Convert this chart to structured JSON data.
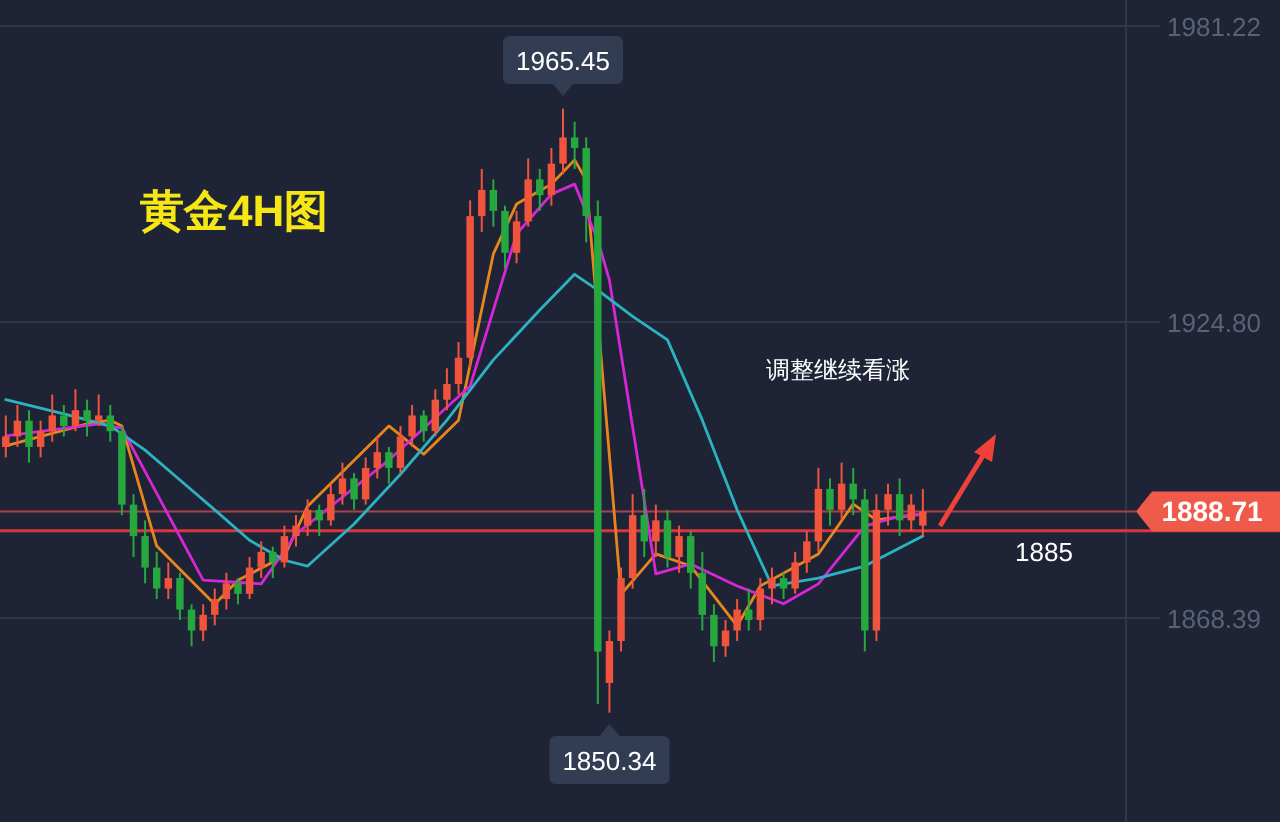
{
  "chart_data": {
    "type": "candlestick",
    "title": "黄金4H图",
    "categories": [
      null,
      null,
      null,
      null,
      null,
      null,
      null,
      null,
      null,
      null,
      null,
      null,
      null,
      null,
      null,
      null,
      null,
      null,
      null,
      null,
      null,
      null,
      null,
      null,
      null,
      null,
      null,
      null,
      null,
      null,
      null,
      null,
      null,
      null,
      null,
      null,
      null,
      null,
      null,
      null,
      null,
      null,
      null,
      null,
      null,
      null,
      null,
      null,
      null,
      null,
      null,
      null,
      null,
      null,
      null,
      null,
      null,
      null,
      null,
      null,
      null,
      null,
      null,
      null,
      null,
      null,
      null,
      null,
      null,
      null,
      null,
      null,
      null,
      null,
      null,
      null,
      null,
      null,
      null,
      null,
      null,
      null,
      null,
      null,
      null,
      null,
      null,
      null,
      null,
      null,
      null,
      null,
      null,
      null,
      null,
      null,
      null
    ],
    "ohlc": [
      [
        1901,
        1907,
        1899,
        1903
      ],
      [
        1903,
        1909,
        1901,
        1906
      ],
      [
        1906,
        1908,
        1898,
        1901
      ],
      [
        1901,
        1906,
        1899,
        1904
      ],
      [
        1904,
        1911,
        1902,
        1907
      ],
      [
        1907,
        1909,
        1903,
        1905
      ],
      [
        1905,
        1912,
        1904,
        1908
      ],
      [
        1908,
        1910,
        1903,
        1906
      ],
      [
        1906,
        1911,
        1905,
        1907
      ],
      [
        1907,
        1909,
        1902,
        1904
      ],
      [
        1904,
        1905,
        1888,
        1890
      ],
      [
        1890,
        1892,
        1880,
        1884
      ],
      [
        1884,
        1887,
        1875,
        1878
      ],
      [
        1878,
        1881,
        1872,
        1874
      ],
      [
        1874,
        1879,
        1872,
        1876
      ],
      [
        1876,
        1877,
        1868,
        1870
      ],
      [
        1870,
        1871,
        1863,
        1866
      ],
      [
        1866,
        1871,
        1864,
        1869
      ],
      [
        1869,
        1874,
        1867,
        1872
      ],
      [
        1872,
        1877,
        1870,
        1875
      ],
      [
        1875,
        1876,
        1871,
        1873
      ],
      [
        1873,
        1880,
        1872,
        1878
      ],
      [
        1878,
        1883,
        1876,
        1881
      ],
      [
        1881,
        1882,
        1876,
        1879
      ],
      [
        1879,
        1886,
        1878,
        1884
      ],
      [
        1884,
        1888,
        1882,
        1886
      ],
      [
        1886,
        1891,
        1884,
        1889
      ],
      [
        1889,
        1890,
        1884,
        1887
      ],
      [
        1887,
        1894,
        1886,
        1892
      ],
      [
        1892,
        1898,
        1890,
        1895
      ],
      [
        1895,
        1896,
        1889,
        1891
      ],
      [
        1891,
        1899,
        1890,
        1897
      ],
      [
        1897,
        1903,
        1895,
        1900
      ],
      [
        1900,
        1901,
        1894,
        1897
      ],
      [
        1897,
        1905,
        1896,
        1903
      ],
      [
        1903,
        1909,
        1901,
        1907
      ],
      [
        1907,
        1908,
        1902,
        1904
      ],
      [
        1904,
        1912,
        1903,
        1910
      ],
      [
        1910,
        1916,
        1908,
        1913
      ],
      [
        1913,
        1921,
        1911,
        1918
      ],
      [
        1918,
        1948,
        1916,
        1945
      ],
      [
        1945,
        1954,
        1942,
        1950
      ],
      [
        1950,
        1952,
        1943,
        1946
      ],
      [
        1946,
        1947,
        1935,
        1938
      ],
      [
        1938,
        1946,
        1936,
        1944
      ],
      [
        1944,
        1956,
        1943,
        1952
      ],
      [
        1952,
        1954,
        1946,
        1949
      ],
      [
        1949,
        1958,
        1947,
        1955
      ],
      [
        1955,
        1965.45,
        1953,
        1960
      ],
      [
        1960,
        1963,
        1954,
        1958
      ],
      [
        1958,
        1960,
        1940,
        1945
      ],
      [
        1945,
        1948,
        1852,
        1862
      ],
      [
        1856,
        1866,
        1850.34,
        1864
      ],
      [
        1864,
        1878,
        1862,
        1876
      ],
      [
        1876,
        1892,
        1874,
        1888
      ],
      [
        1888,
        1893,
        1880,
        1883
      ],
      [
        1883,
        1890,
        1880,
        1887
      ],
      [
        1887,
        1889,
        1878,
        1880
      ],
      [
        1880,
        1886,
        1877,
        1884
      ],
      [
        1884,
        1885,
        1874,
        1877
      ],
      [
        1877,
        1881,
        1866,
        1869
      ],
      [
        1869,
        1871,
        1860,
        1863
      ],
      [
        1863,
        1868,
        1861,
        1866
      ],
      [
        1866,
        1872,
        1864,
        1870
      ],
      [
        1870,
        1874,
        1866,
        1868
      ],
      [
        1868,
        1876,
        1866,
        1874
      ],
      [
        1874,
        1878,
        1871,
        1876
      ],
      [
        1876,
        1877,
        1872,
        1874
      ],
      [
        1874,
        1881,
        1873,
        1879
      ],
      [
        1879,
        1885,
        1877,
        1883
      ],
      [
        1883,
        1897,
        1881,
        1893
      ],
      [
        1893,
        1895,
        1886,
        1889
      ],
      [
        1889,
        1898,
        1887,
        1894
      ],
      [
        1894,
        1897,
        1888,
        1891
      ],
      [
        1891,
        1893,
        1862,
        1866
      ],
      [
        1866,
        1892,
        1864,
        1889
      ],
      [
        1889,
        1894,
        1886,
        1892
      ],
      [
        1892,
        1895,
        1884,
        1887
      ],
      [
        1887,
        1892,
        1885,
        1890
      ],
      [
        1886,
        1893,
        1884,
        1888.71
      ],
      null,
      null,
      null,
      null,
      null,
      null,
      null,
      null,
      null,
      null,
      null,
      null,
      null,
      null,
      null,
      null,
      null
    ],
    "colors": [
      "#f0543c",
      "#f0543c",
      "#27a83e",
      "#f0543c",
      "#f0543c",
      "#27a83e",
      "#f0543c",
      "#27a83e",
      "#f0543c",
      "#27a83e",
      "#27a83e",
      "#27a83e",
      "#27a83e",
      "#27a83e",
      "#f0543c",
      "#27a83e",
      "#27a83e",
      "#f0543c",
      "#f0543c",
      "#f0543c",
      "#27a83e",
      "#f0543c",
      "#f0543c",
      "#27a83e",
      "#f0543c",
      "#f0543c",
      "#f0543c",
      "#27a83e",
      "#f0543c",
      "#f0543c",
      "#27a83e",
      "#f0543c",
      "#f0543c",
      "#27a83e",
      "#f0543c",
      "#f0543c",
      "#27a83e",
      "#f0543c",
      "#f0543c",
      "#f0543c",
      "#f0543c",
      "#f0543c",
      "#27a83e",
      "#27a83e",
      "#f0543c",
      "#f0543c",
      "#27a83e",
      "#f0543c",
      "#f0543c",
      "#27a83e",
      "#27a83e",
      "#27a83e",
      "#f0543c",
      "#f0543c",
      "#f0543c",
      "#27a83e",
      "#f0543c",
      "#27a83e",
      "#f0543c",
      "#27a83e",
      "#27a83e",
      "#27a83e",
      "#f0543c",
      "#f0543c",
      "#27a83e",
      "#f0543c",
      "#f0543c",
      "#27a83e",
      "#f0543c",
      "#f0543c",
      "#f0543c",
      "#27a83e",
      "#f0543c",
      "#27a83e",
      "#27a83e",
      "#f0543c",
      "#f0543c",
      "#27a83e",
      "#f0543c",
      "#f0543c",
      null,
      null,
      null,
      null,
      null,
      null,
      null,
      null,
      null,
      null,
      null,
      null,
      null,
      null,
      null,
      null,
      null
    ],
    "series": [
      {
        "type": "line",
        "color": "#e8861e",
        "values": [
          1901.2,
          null,
          null,
          null,
          null,
          null,
          null,
          1905.4,
          null,
          1906.1,
          1905,
          null,
          null,
          1882.1,
          null,
          null,
          null,
          null,
          1871,
          null,
          1875.6,
          null,
          null,
          null,
          1880.2,
          null,
          1889.7,
          null,
          null,
          null,
          null,
          null,
          null,
          1905,
          null,
          null,
          1899.6,
          null,
          null,
          1906.1,
          null,
          null,
          1937.8,
          null,
          1947.3,
          null,
          null,
          1951.1,
          null,
          1955.7,
          1951.9,
          null,
          null,
          1872.9,
          null,
          null,
          1880.6,
          null,
          null,
          1878.3,
          null,
          null,
          null,
          1866.9,
          null,
          1874.5,
          null,
          null,
          null,
          null,
          1880.6,
          null,
          null,
          1890.1,
          null,
          1887.1,
          null,
          null,
          null,
          1888.2,
          null,
          null,
          null,
          null,
          null,
          null,
          null,
          null,
          null,
          null,
          null,
          null,
          null,
          null,
          null,
          null,
          null
        ]
      },
      {
        "type": "line",
        "color": "#d626d6",
        "values": [
          1903.1,
          null,
          null,
          null,
          null,
          null,
          null,
          null,
          1905.4,
          null,
          1904.6,
          null,
          null,
          null,
          null,
          null,
          null,
          1875.6,
          null,
          null,
          null,
          null,
          1874.9,
          null,
          null,
          1884.4,
          null,
          null,
          null,
          null,
          null,
          null,
          null,
          1898.5,
          null,
          null,
          null,
          null,
          null,
          null,
          1912.6,
          null,
          null,
          null,
          1941.6,
          null,
          null,
          1949.2,
          null,
          1951.1,
          null,
          1940.4,
          1932.8,
          null,
          null,
          null,
          1876.8,
          null,
          null,
          1878.7,
          null,
          null,
          null,
          1874.5,
          null,
          null,
          null,
          1871.1,
          null,
          null,
          1874.9,
          null,
          null,
          null,
          1885.9,
          null,
          null,
          1887.8,
          null,
          1888.2,
          null,
          null,
          null,
          null,
          null,
          null,
          null,
          null,
          null,
          null,
          null,
          null,
          null,
          null,
          null,
          null,
          null
        ]
      },
      {
        "type": "line",
        "color": "#2bb3c0",
        "values": [
          1910,
          null,
          null,
          null,
          null,
          1907.3,
          null,
          null,
          null,
          1905,
          null,
          null,
          1900.4,
          null,
          null,
          1894.7,
          null,
          null,
          1889,
          null,
          null,
          1883.2,
          null,
          null,
          1879.4,
          null,
          1878.3,
          null,
          null,
          null,
          1886.3,
          null,
          null,
          null,
          1895.8,
          null,
          null,
          null,
          1906.1,
          null,
          null,
          null,
          1917.6,
          null,
          null,
          null,
          1927.1,
          null,
          null,
          1933.9,
          null,
          1930.9,
          null,
          null,
          1925.9,
          null,
          null,
          1921.4,
          null,
          null,
          1906.1,
          null,
          null,
          1889,
          null,
          null,
          1874.5,
          null,
          null,
          null,
          1876,
          null,
          null,
          null,
          1878.3,
          null,
          null,
          null,
          null,
          1884,
          null,
          null,
          null,
          null,
          null,
          null,
          null,
          null,
          null,
          null,
          null,
          null,
          null,
          null,
          null,
          null,
          null
        ]
      }
    ],
    "ylim": [
      1829.5,
      1986.2
    ],
    "yticks": [
      {
        "value": 1981.22,
        "label": "1981.22"
      },
      {
        "value": 1924.8,
        "label": "1924.80"
      },
      {
        "value": 1868.39,
        "label": "1868.39"
      }
    ],
    "grid": "y",
    "marker": "none",
    "tick_labels": "y",
    "ref_lines": [
      {
        "axis": "y",
        "value": 1885,
        "label": "1885",
        "color": "#d9363e"
      },
      {
        "axis": "y",
        "value": 1888.71,
        "label": "1888.71",
        "color": "#a8424a"
      }
    ],
    "annotations": [
      "调整继续看涨",
      "1965.45",
      "1850.34"
    ]
  }
}
